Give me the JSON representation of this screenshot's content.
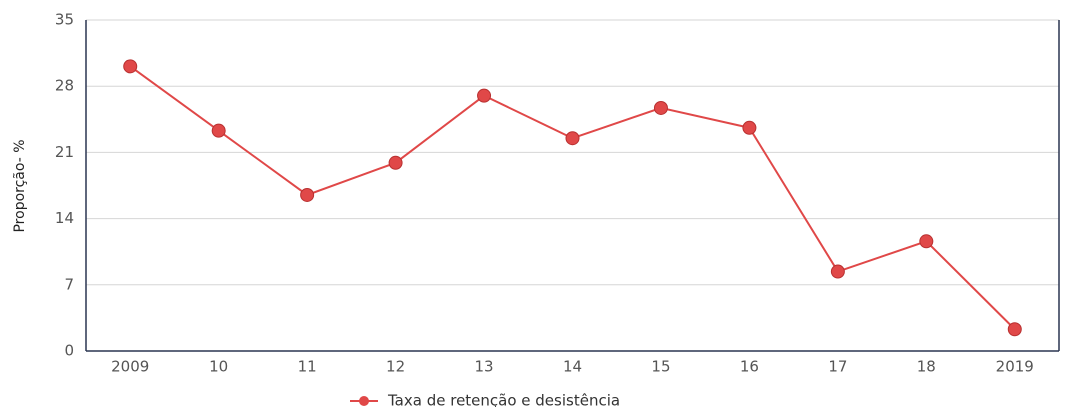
{
  "chart_data": {
    "type": "line",
    "y_label": "Proporção- %",
    "categories": [
      "2009",
      "10",
      "11",
      "12",
      "13",
      "14",
      "15",
      "16",
      "17",
      "18",
      "2019"
    ],
    "series": [
      {
        "name": "Taxa de retenção e desistência",
        "color": "#e04848",
        "values": [
          30.1,
          23.3,
          16.5,
          19.9,
          27.0,
          22.5,
          25.7,
          23.6,
          8.4,
          11.6,
          2.3
        ]
      }
    ],
    "ylim": [
      0,
      35
    ],
    "yticks": [
      0,
      7,
      14,
      21,
      28,
      35
    ],
    "grid": true,
    "legend": "bottom"
  }
}
